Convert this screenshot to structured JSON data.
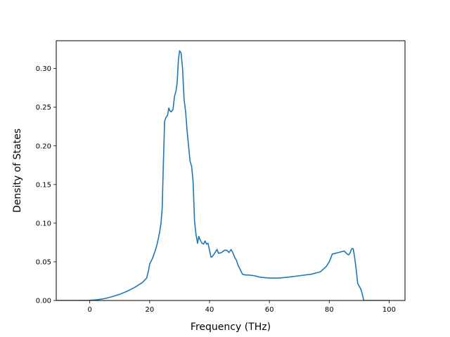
{
  "chart_data": {
    "type": "line",
    "title": "",
    "xlabel": "Frequency (THz)",
    "ylabel": "Density of States",
    "xlim": [
      -11.2,
      105.3
    ],
    "ylim": [
      0,
      0.336
    ],
    "xticks": [
      0,
      20,
      40,
      60,
      80,
      100
    ],
    "xtick_labels": [
      "0",
      "20",
      "40",
      "60",
      "80",
      "100"
    ],
    "yticks": [
      0,
      0.05,
      0.1,
      0.15,
      0.2,
      0.25,
      0.3
    ],
    "ytick_labels": [
      "0.00",
      "0.05",
      "0.10",
      "0.15",
      "0.20",
      "0.25",
      "0.30"
    ],
    "grid": false,
    "line_color": "#1f77b4",
    "series": [
      {
        "x": [
          -11.5,
          -5,
          0,
          2.5,
          5,
          7.5,
          10,
          12.5,
          15,
          17.5,
          19.0,
          19.7,
          20.0,
          21.0,
          22.0,
          22.5,
          23.0,
          23.4,
          23.8,
          24.2,
          24.5,
          25.0,
          25.5,
          26.0,
          26.4,
          26.8,
          27.2,
          27.8,
          28.3,
          28.8,
          29.2,
          29.6,
          30.0,
          30.5,
          31.0,
          31.5,
          32.0,
          32.5,
          33.0,
          33.5,
          34.0,
          34.5,
          35.0,
          35.5,
          36.0,
          36.4,
          36.8,
          37.5,
          38.0,
          38.5,
          39.0,
          39.5,
          40.0,
          40.5,
          41.0,
          41.5,
          42.0,
          42.5,
          43.0,
          44.0,
          45.0,
          45.8,
          46.5,
          47.2,
          48.0,
          48.5,
          49.0,
          49.5,
          50.0,
          50.5,
          51.0,
          52.0,
          53.0,
          55.0,
          57.0,
          60.0,
          63.0,
          66.0,
          70.0,
          74.0,
          77.0,
          79.0,
          80.0,
          81.0,
          82.0,
          83.0,
          84.0,
          85.0,
          86.0,
          86.5,
          87.0,
          87.5,
          88.0,
          88.5,
          89.0,
          89.5,
          90.5,
          91.0,
          91.5,
          95.0,
          100.0
        ],
        "y": [
          0.0,
          0.0,
          0.0002,
          0.001,
          0.0025,
          0.005,
          0.008,
          0.012,
          0.017,
          0.023,
          0.029,
          0.04,
          0.047,
          0.055,
          0.066,
          0.073,
          0.082,
          0.09,
          0.1,
          0.12,
          0.165,
          0.232,
          0.237,
          0.24,
          0.249,
          0.245,
          0.244,
          0.247,
          0.264,
          0.271,
          0.282,
          0.311,
          0.323,
          0.32,
          0.3,
          0.26,
          0.245,
          0.22,
          0.2,
          0.18,
          0.174,
          0.155,
          0.102,
          0.085,
          0.074,
          0.083,
          0.079,
          0.074,
          0.073,
          0.077,
          0.073,
          0.074,
          0.065,
          0.056,
          0.057,
          0.06,
          0.063,
          0.066,
          0.061,
          0.062,
          0.065,
          0.065,
          0.062,
          0.066,
          0.06,
          0.055,
          0.052,
          0.046,
          0.042,
          0.038,
          0.034,
          0.033,
          0.033,
          0.032,
          0.03,
          0.029,
          0.029,
          0.03,
          0.032,
          0.034,
          0.037,
          0.044,
          0.05,
          0.06,
          0.061,
          0.062,
          0.063,
          0.064,
          0.06,
          0.059,
          0.062,
          0.067,
          0.067,
          0.055,
          0.04,
          0.022,
          0.015,
          0.009,
          0.0,
          0.0,
          0.0
        ]
      }
    ]
  }
}
